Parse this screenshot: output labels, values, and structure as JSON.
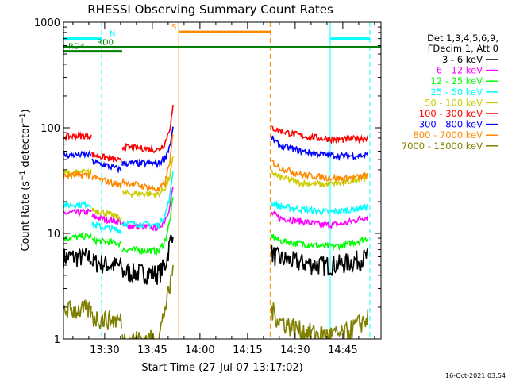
{
  "chart_data": {
    "type": "line",
    "title": "RHESSI Observing Summary Count Rates",
    "xlabel": "Start Time (27-Jul-07 13:17:02)",
    "ylabel": "Count Rate (s⁻¹ detector⁻¹)",
    "ylabel_parts": [
      "Count Rate (s",
      "−1",
      " detector",
      "−1",
      ")"
    ],
    "x_unit": "minutes after 13:17:02 (27-Jul-07)",
    "xlim": [
      0,
      100
    ],
    "ylim": [
      1,
      1000
    ],
    "yscale": "log",
    "x_ticks": [
      {
        "label": "13:30",
        "minutes": 12.97
      },
      {
        "label": "13:45",
        "minutes": 27.97
      },
      {
        "label": "14:00",
        "minutes": 42.97
      },
      {
        "label": "14:15",
        "minutes": 57.97
      },
      {
        "label": "14:30",
        "minutes": 72.97
      },
      {
        "label": "14:45",
        "minutes": 87.97
      }
    ],
    "y_ticks": [
      1,
      10,
      100,
      1000
    ],
    "grid": false,
    "legend": {
      "placement": "top-right",
      "header": [
        "Det 1,3,4,5,6,9,",
        "FDecim 1, Att 0"
      ]
    },
    "segments": [
      {
        "t": [
          0,
          8.8
        ]
      },
      {
        "t": [
          9.0,
          18.3
        ]
      },
      {
        "t": [
          18.5,
          34.7
        ]
      },
      {
        "t": [
          65.6,
          96.0
        ]
      }
    ],
    "series": [
      {
        "name": "3 - 6 keV",
        "color": "#000000",
        "values": [
          [
            0,
            6.0
          ],
          [
            8.8,
            6.0
          ],
          [
            9.0,
            5.4
          ],
          [
            18.3,
            4.9
          ],
          [
            18.5,
            4.3
          ],
          [
            30,
            4.2
          ],
          [
            32,
            5.0
          ],
          [
            33.5,
            8.0
          ],
          [
            34.7,
            12.0
          ],
          [
            65.6,
            6.5
          ],
          [
            68,
            5.8
          ],
          [
            75,
            5.3
          ],
          [
            82,
            5.0
          ],
          [
            88,
            5.2
          ],
          [
            96,
            6.0
          ]
        ]
      },
      {
        "name": "6 - 12 keV",
        "color": "#ff00ff",
        "values": [
          [
            0,
            15.5
          ],
          [
            8.8,
            16.0
          ],
          [
            9.0,
            14.3
          ],
          [
            18.3,
            12.8
          ],
          [
            18.5,
            11.8
          ],
          [
            30,
            11.3
          ],
          [
            32,
            13.5
          ],
          [
            33.5,
            18.0
          ],
          [
            34.7,
            30.0
          ],
          [
            65.6,
            15.5
          ],
          [
            68,
            14.0
          ],
          [
            75,
            13.0
          ],
          [
            82,
            12.0
          ],
          [
            88,
            12.3
          ],
          [
            96,
            14.5
          ]
        ]
      },
      {
        "name": "12 - 25 keV",
        "color": "#00ff00",
        "values": [
          [
            0,
            9.0
          ],
          [
            8.8,
            9.5
          ],
          [
            9.0,
            8.6
          ],
          [
            18.3,
            8.0
          ],
          [
            18.5,
            7.1
          ],
          [
            30,
            6.8
          ],
          [
            32,
            8.5
          ],
          [
            33.5,
            13.0
          ],
          [
            34.7,
            24.0
          ],
          [
            65.6,
            9.5
          ],
          [
            68,
            8.5
          ],
          [
            75,
            8.0
          ],
          [
            82,
            7.5
          ],
          [
            88,
            7.7
          ],
          [
            96,
            9.0
          ]
        ]
      },
      {
        "name": "25 - 50 keV",
        "color": "#00ffff",
        "values": [
          [
            0,
            18.5
          ],
          [
            8.8,
            19.0
          ],
          [
            9.0,
            12.0
          ],
          [
            18.3,
            10.6
          ],
          [
            18.5,
            12.5
          ],
          [
            30,
            12.0
          ],
          [
            32,
            15.0
          ],
          [
            33.5,
            22.0
          ],
          [
            34.7,
            45.0
          ],
          [
            65.6,
            19.5
          ],
          [
            68,
            18.0
          ],
          [
            75,
            17.0
          ],
          [
            82,
            16.0
          ],
          [
            88,
            16.3
          ],
          [
            96,
            18.0
          ]
        ]
      },
      {
        "name": "50 - 100 keV",
        "color": "#cccc00",
        "values": [
          [
            0,
            37.0
          ],
          [
            8.8,
            38.0
          ],
          [
            9.0,
            17.0
          ],
          [
            18.3,
            14.0
          ],
          [
            18.5,
            24.0
          ],
          [
            30,
            23.5
          ],
          [
            32,
            27.0
          ],
          [
            33.5,
            35.0
          ],
          [
            34.7,
            55.0
          ],
          [
            65.6,
            38.0
          ],
          [
            68,
            34.0
          ],
          [
            75,
            30.0
          ],
          [
            82,
            29.0
          ],
          [
            88,
            30.0
          ],
          [
            96,
            35.0
          ]
        ]
      },
      {
        "name": "100 - 300 keV",
        "color": "#ff0000",
        "values": [
          [
            0,
            83.0
          ],
          [
            8.8,
            84.0
          ],
          [
            9.0,
            56.0
          ],
          [
            18.3,
            48.0
          ],
          [
            18.5,
            66.0
          ],
          [
            30,
            62.0
          ],
          [
            32,
            72.0
          ],
          [
            33.5,
            100.0
          ],
          [
            34.7,
            170.0
          ],
          [
            65.6,
            100.0
          ],
          [
            68,
            94.0
          ],
          [
            75,
            84.0
          ],
          [
            82,
            79.0
          ],
          [
            88,
            77.0
          ],
          [
            96,
            81.0
          ]
        ]
      },
      {
        "name": "300 - 800 keV",
        "color": "#0000ff",
        "values": [
          [
            0,
            55.0
          ],
          [
            8.8,
            56.0
          ],
          [
            9.0,
            48.0
          ],
          [
            18.3,
            40.0
          ],
          [
            18.5,
            46.0
          ],
          [
            30,
            46.0
          ],
          [
            32,
            52.0
          ],
          [
            33.5,
            68.0
          ],
          [
            34.7,
            105.0
          ],
          [
            65.6,
            80.0
          ],
          [
            68,
            68.0
          ],
          [
            75,
            60.0
          ],
          [
            82,
            56.0
          ],
          [
            88,
            54.0
          ],
          [
            96,
            55.0
          ]
        ]
      },
      {
        "name": "800 - 7000 keV",
        "color": "#ff8800",
        "values": [
          [
            0,
            35.0
          ],
          [
            8.8,
            36.0
          ],
          [
            9.0,
            34.0
          ],
          [
            18.3,
            28.5
          ],
          [
            18.5,
            31.0
          ],
          [
            30,
            26.0
          ],
          [
            32,
            30.0
          ],
          [
            33.5,
            48.0
          ],
          [
            34.7,
            95.0
          ],
          [
            65.6,
            48.0
          ],
          [
            68,
            42.0
          ],
          [
            75,
            36.0
          ],
          [
            82,
            34.0
          ],
          [
            88,
            33.0
          ],
          [
            96,
            35.0
          ]
        ]
      },
      {
        "name": "7000 - 15000 keV",
        "color": "#808000",
        "values": [
          [
            0,
            1.9
          ],
          [
            8.8,
            1.9
          ],
          [
            9.0,
            1.6
          ],
          [
            18.3,
            1.5
          ],
          [
            18.5,
            1.0
          ],
          [
            30,
            1.0
          ],
          [
            32,
            2.0
          ],
          [
            33.5,
            3.0
          ],
          [
            34.7,
            5.5
          ],
          [
            65.6,
            1.9
          ],
          [
            68,
            1.5
          ],
          [
            75,
            1.2
          ],
          [
            82,
            1.1
          ],
          [
            88,
            1.1
          ],
          [
            96,
            1.6
          ]
        ]
      }
    ],
    "state_bars": [
      {
        "label": "N",
        "color": "#00ffff",
        "intervals": [
          [
            0,
            12
          ]
        ],
        "level": 700,
        "label_at": 14.5
      },
      {
        "label": "N",
        "color": "#00ffff",
        "intervals": [
          [
            84,
            96.5
          ]
        ],
        "level": 700
      },
      {
        "label": "S",
        "color": "#ff8800",
        "intervals": [
          [
            36.5,
            65
          ]
        ],
        "level": 810,
        "label_at": 34
      },
      {
        "label": "RD0",
        "color": "#008000",
        "intervals": [
          [
            0,
            100
          ]
        ],
        "level": 580,
        "label_at": 10.5
      },
      {
        "label": "RD4",
        "color": "#008000",
        "intervals": [
          [
            0,
            18.5
          ]
        ],
        "level": 530,
        "label_at": 1.5
      }
    ],
    "markers": [
      {
        "minutes": 0,
        "color": "#00ffff",
        "style": "solid"
      },
      {
        "minutes": 12,
        "color": "#00ffff",
        "style": "dashed"
      },
      {
        "minutes": 36.3,
        "color": "#ff8800",
        "style": "solid"
      },
      {
        "minutes": 65.1,
        "color": "#ff8800",
        "style": "dashed"
      },
      {
        "minutes": 84,
        "color": "#00ffff",
        "style": "solid"
      },
      {
        "minutes": 96.5,
        "color": "#00ffff",
        "style": "dashed"
      }
    ]
  },
  "footer": {
    "timestamp": "16-Oct-2021 03:54"
  }
}
